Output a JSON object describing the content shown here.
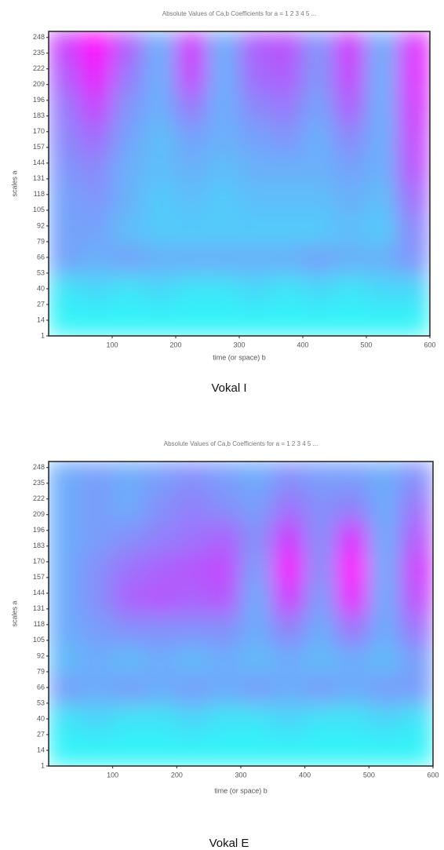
{
  "chart_data": [
    {
      "type": "heatmap",
      "title": "Absolute Values of Ca,b Coefficients for a = 1 2 3 4 5 ...",
      "x_label": "time (or space) b",
      "y_label": "scales a",
      "caption": "Vokal I",
      "xlim": [
        0,
        600
      ],
      "xticks": [
        100,
        200,
        300,
        400,
        500,
        600
      ],
      "ylim": [
        1,
        253
      ],
      "yticks": [
        1,
        14,
        27,
        40,
        53,
        66,
        79,
        92,
        105,
        118,
        131,
        144,
        157,
        170,
        183,
        196,
        209,
        222,
        235,
        248
      ],
      "colors": [
        "#30f4f8",
        "#ff00ff"
      ],
      "values": [
        [
          0.05,
          0.05,
          0.05,
          0.05,
          0.05,
          0.05,
          0.05,
          0.05,
          0.05,
          0.05,
          0.05,
          0.05
        ],
        [
          0.1,
          0.15,
          0.1,
          0.15,
          0.1,
          0.1,
          0.15,
          0.1,
          0.15,
          0.1,
          0.15,
          0.15
        ],
        [
          0.35,
          0.3,
          0.35,
          0.3,
          0.3,
          0.3,
          0.3,
          0.3,
          0.35,
          0.3,
          0.3,
          0.4
        ],
        [
          0.35,
          0.35,
          0.25,
          0.2,
          0.2,
          0.2,
          0.2,
          0.2,
          0.2,
          0.25,
          0.2,
          0.45
        ],
        [
          0.35,
          0.4,
          0.3,
          0.2,
          0.25,
          0.2,
          0.25,
          0.25,
          0.25,
          0.3,
          0.25,
          0.55
        ],
        [
          0.4,
          0.45,
          0.3,
          0.25,
          0.3,
          0.25,
          0.3,
          0.3,
          0.3,
          0.35,
          0.3,
          0.65
        ],
        [
          0.45,
          0.55,
          0.35,
          0.25,
          0.35,
          0.3,
          0.35,
          0.4,
          0.3,
          0.45,
          0.3,
          0.7
        ],
        [
          0.5,
          0.7,
          0.4,
          0.3,
          0.5,
          0.3,
          0.45,
          0.5,
          0.35,
          0.6,
          0.3,
          0.75
        ],
        [
          0.6,
          0.85,
          0.5,
          0.3,
          0.7,
          0.3,
          0.55,
          0.6,
          0.4,
          0.7,
          0.3,
          0.8
        ],
        [
          0.7,
          0.95,
          0.6,
          0.3,
          0.75,
          0.3,
          0.6,
          0.65,
          0.4,
          0.75,
          0.3,
          0.8
        ]
      ]
    },
    {
      "type": "heatmap",
      "title": "Absolute Values of Ca,b Coefficients for a = 1 2 3 4 5 ...",
      "x_label": "time (or space) b",
      "y_label": "scales a",
      "caption": "Vokal E",
      "xlim": [
        0,
        600
      ],
      "xticks": [
        100,
        200,
        300,
        400,
        500,
        600
      ],
      "ylim": [
        1,
        253
      ],
      "yticks": [
        1,
        14,
        27,
        40,
        53,
        66,
        79,
        92,
        105,
        118,
        131,
        144,
        157,
        170,
        183,
        196,
        209,
        222,
        235,
        248
      ],
      "colors": [
        "#30f4f8",
        "#ff00ff"
      ],
      "values": [
        [
          0.05,
          0.05,
          0.05,
          0.05,
          0.05,
          0.05,
          0.05,
          0.05,
          0.05,
          0.05,
          0.05,
          0.05
        ],
        [
          0.1,
          0.15,
          0.1,
          0.1,
          0.15,
          0.1,
          0.1,
          0.15,
          0.1,
          0.1,
          0.15,
          0.1
        ],
        [
          0.35,
          0.3,
          0.35,
          0.3,
          0.35,
          0.3,
          0.35,
          0.3,
          0.35,
          0.3,
          0.35,
          0.35
        ],
        [
          0.25,
          0.3,
          0.25,
          0.3,
          0.25,
          0.3,
          0.25,
          0.3,
          0.25,
          0.3,
          0.25,
          0.35
        ],
        [
          0.3,
          0.35,
          0.4,
          0.4,
          0.4,
          0.4,
          0.3,
          0.45,
          0.3,
          0.5,
          0.3,
          0.5
        ],
        [
          0.3,
          0.4,
          0.55,
          0.6,
          0.55,
          0.6,
          0.3,
          0.7,
          0.35,
          0.8,
          0.3,
          0.65
        ],
        [
          0.3,
          0.4,
          0.5,
          0.55,
          0.6,
          0.65,
          0.35,
          0.85,
          0.4,
          0.9,
          0.3,
          0.7
        ],
        [
          0.3,
          0.35,
          0.4,
          0.45,
          0.5,
          0.55,
          0.4,
          0.7,
          0.4,
          0.75,
          0.3,
          0.6
        ],
        [
          0.3,
          0.35,
          0.3,
          0.4,
          0.45,
          0.4,
          0.35,
          0.5,
          0.4,
          0.45,
          0.3,
          0.5
        ],
        [
          0.3,
          0.35,
          0.3,
          0.35,
          0.4,
          0.35,
          0.3,
          0.4,
          0.35,
          0.35,
          0.3,
          0.4
        ]
      ]
    }
  ]
}
